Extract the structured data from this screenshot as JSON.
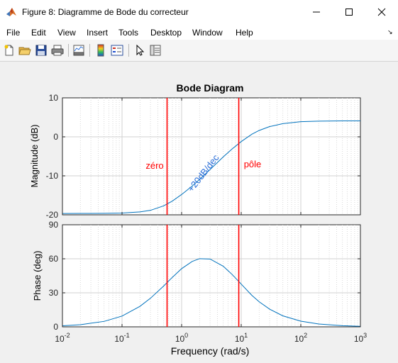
{
  "window": {
    "title": "Figure 8: Diagramme de Bode du correcteur",
    "app_icon": "matlab-icon",
    "controls": [
      "minimize-icon",
      "maximize-icon",
      "close-icon"
    ]
  },
  "menu": {
    "items": [
      "File",
      "Edit",
      "View",
      "Insert",
      "Tools",
      "Desktop",
      "Window",
      "Help"
    ],
    "dock_icon": "dock-arrow-icon"
  },
  "toolbar": {
    "icons": [
      "new-figure-icon",
      "open-file-icon",
      "save-icon",
      "print-icon",
      "link-plot-icon",
      "colorbar-icon",
      "legend-icon",
      "edit-plot-arrow-icon",
      "property-inspector-icon"
    ]
  },
  "chart_data": {
    "type": "line",
    "title": "Bode Diagram",
    "xlabel": "Frequency  (rad/s)",
    "xscale": "log",
    "xlim": [
      0.01,
      1000
    ],
    "x_ticks": [
      {
        "base": "10",
        "exp": "-2"
      },
      {
        "base": "10",
        "exp": "-1"
      },
      {
        "base": "10",
        "exp": "0"
      },
      {
        "base": "10",
        "exp": "1"
      },
      {
        "base": "10",
        "exp": "2"
      },
      {
        "base": "10",
        "exp": "3"
      }
    ],
    "grid": true,
    "legend": "none",
    "series_color": "#0072bd",
    "marker_color": "#ff0000",
    "annotation_color": "#ff0000",
    "slope_label_color": "#2a6ed8",
    "markers": [
      {
        "x": 0.57,
        "label": "zéro"
      },
      {
        "x": 9.1,
        "label": "pôle"
      }
    ],
    "slope_label": "+20dB/dec",
    "magnitude": {
      "ylabel": "Magnitude (dB)",
      "ylim": [
        -20,
        10
      ],
      "yticks": [
        "-20",
        "-10",
        "0",
        "10"
      ],
      "x": [
        0.01,
        0.02,
        0.05,
        0.1,
        0.2,
        0.3,
        0.5,
        0.7,
        1,
        1.5,
        2,
        3,
        5,
        7,
        10,
        15,
        20,
        30,
        50,
        100,
        200,
        500,
        1000
      ],
      "y": [
        -19.65,
        -19.64,
        -19.62,
        -19.54,
        -19.26,
        -18.85,
        -17.69,
        -16.46,
        -14.79,
        -12.64,
        -10.93,
        -8.38,
        -5.13,
        -3.14,
        -1.22,
        0.65,
        1.64,
        2.63,
        3.39,
        3.88,
        4.03,
        4.08,
        4.09
      ]
    },
    "phase": {
      "ylabel": "Phase (deg)",
      "ylim": [
        0,
        90
      ],
      "yticks": [
        "0",
        "30",
        "60",
        "90"
      ],
      "x": [
        0.01,
        0.02,
        0.05,
        0.1,
        0.2,
        0.3,
        0.5,
        0.7,
        1,
        1.5,
        2,
        3,
        5,
        7,
        10,
        15,
        20,
        30,
        50,
        100,
        200,
        500,
        1000
      ],
      "y": [
        0.95,
        1.9,
        4.8,
        9.5,
        18.1,
        25.2,
        36.0,
        43.7,
        51.3,
        57.6,
        60.1,
        59.8,
        53.4,
        46.3,
        37.7,
        27.9,
        22.1,
        15.6,
        9.7,
        5.0,
        2.5,
        1.0,
        0.5
      ]
    }
  }
}
